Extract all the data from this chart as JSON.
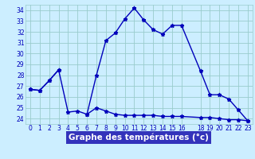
{
  "x_all": [
    0,
    1,
    2,
    3,
    4,
    5,
    6,
    7,
    8,
    9,
    10,
    11,
    12,
    13,
    14,
    15,
    16,
    18,
    19,
    20,
    21,
    22,
    23
  ],
  "line1_y": [
    26.7,
    26.6,
    27.5,
    28.5,
    24.6,
    24.7,
    24.4,
    25.0,
    24.7,
    24.4,
    24.3,
    24.3,
    24.3,
    24.3,
    24.2,
    24.2,
    24.2,
    24.1,
    24.1,
    24.0,
    23.9,
    23.9,
    23.8
  ],
  "line2_x": [
    0,
    1,
    2,
    3,
    4,
    5,
    6,
    7,
    8,
    9,
    10,
    11,
    12,
    13,
    14,
    15,
    16,
    18,
    19,
    20,
    21,
    22,
    23
  ],
  "line2_y": [
    26.7,
    26.6,
    27.5,
    28.5,
    null,
    null,
    24.4,
    28.0,
    31.2,
    31.9,
    33.2,
    34.2,
    33.1,
    32.2,
    31.8,
    32.6,
    32.6,
    28.4,
    26.2,
    26.2,
    25.8,
    24.8,
    23.8
  ],
  "xlabel": "Graphe des températures (°c)",
  "xtick_positions": [
    0,
    1,
    2,
    3,
    4,
    5,
    6,
    7,
    8,
    9,
    10,
    11,
    12,
    13,
    14,
    15,
    16,
    18,
    19,
    20,
    21,
    22,
    23
  ],
  "xtick_labels": [
    "0",
    "1",
    "2",
    "3",
    "4",
    "5",
    "6",
    "7",
    "8",
    "9",
    "10",
    "11",
    "12",
    "13",
    "14",
    "15",
    "16",
    "18",
    "19",
    "20",
    "21",
    "22",
    "23"
  ],
  "xlim": [
    -0.5,
    23.5
  ],
  "ylim": [
    23.5,
    34.5
  ],
  "yticks": [
    24,
    25,
    26,
    27,
    28,
    29,
    30,
    31,
    32,
    33,
    34
  ],
  "line_color": "#0000bb",
  "bg_color": "#cceeff",
  "grid_color": "#99cccc",
  "xlabel_bg": "#3333bb",
  "xlabel_fg": "#ffffff",
  "marker": "*",
  "markersize": 3.5,
  "linewidth": 1.0,
  "tick_fontsize": 5.5,
  "xlabel_fontsize": 7.5
}
